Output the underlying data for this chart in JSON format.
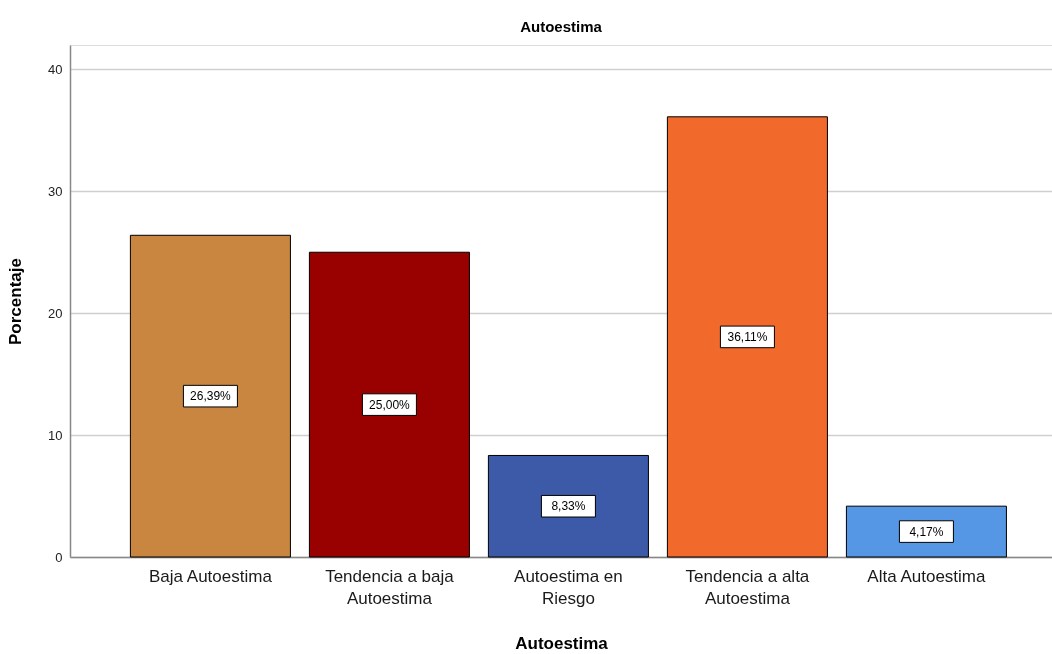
{
  "chart_data": {
    "type": "bar",
    "title": "Autoestima",
    "xlabel": "Autoestima",
    "ylabel": "Porcentaje",
    "categories": [
      "Baja Autoestima",
      "Tendencia a baja Autoestima",
      "Autoestima en Riesgo",
      "Tendencia a alta Autoestima",
      "Alta Autoestima"
    ],
    "values": [
      26.39,
      25.0,
      8.33,
      36.11,
      4.17
    ],
    "colors": [
      "#c98640",
      "#990000",
      "#3d5aa8",
      "#f2692c",
      "#5597e4"
    ],
    "value_labels": [
      "26,39%",
      "25,00%",
      "8,33%",
      "36,11%",
      "4,17%"
    ],
    "ylim": [
      0,
      42
    ],
    "yticks": [
      0,
      10,
      20,
      30,
      40
    ],
    "grid": "y"
  }
}
